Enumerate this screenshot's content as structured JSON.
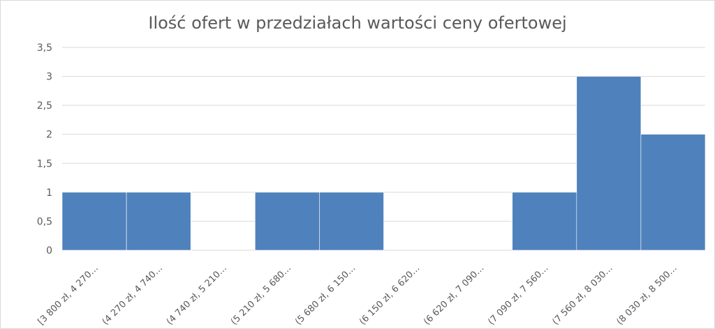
{
  "chart_data": {
    "type": "bar",
    "title": "Ilość ofert w przedziałach wartości ceny ofertowej",
    "xlabel": "",
    "ylabel": "",
    "categories": [
      "[3 800 zł, 4 270…",
      "(4 270 zł, 4 740…",
      "(4 740 zł, 5 210…",
      "(5 210 zł, 5 680…",
      "(5 680 zł, 6 150…",
      "(6 150 zł, 6 620…",
      "(6 620 zł, 7 090…",
      "(7 090 zł, 7 560…",
      "(7 560 zł, 8 030…",
      "(8 030 zł, 8 500…"
    ],
    "values": [
      1,
      1,
      0,
      1,
      1,
      0,
      0,
      1,
      3,
      2
    ],
    "ylim": [
      0,
      3.5
    ],
    "yticks": [
      "0",
      "0,5",
      "1",
      "1,5",
      "2",
      "2,5",
      "3",
      "3,5"
    ],
    "grid": true,
    "bar_color": "#4f81bd"
  }
}
